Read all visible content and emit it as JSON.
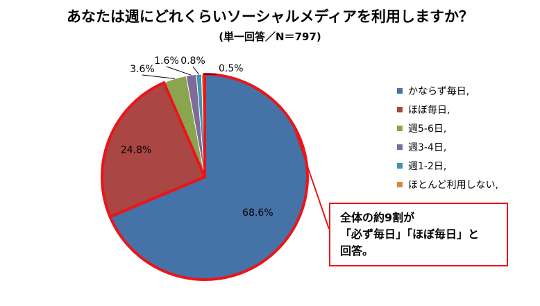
{
  "chart_data": {
    "type": "pie",
    "title": "あなたは週にどれくらいソーシャルメディアを利用しますか？",
    "subtitle": "(単一回答／N＝797)",
    "categories": [
      "かならず毎日,",
      "ほぼ毎日,",
      "週5-6日,",
      "週3-4日,",
      "週1-2日,",
      "ほとんど利用しない,"
    ],
    "values": [
      68.6,
      24.8,
      3.6,
      1.6,
      0.8,
      0.5
    ],
    "labels": [
      "68.6%",
      "24.8%",
      "3.6%",
      "1.6%",
      "0.8%",
      "0.5%"
    ],
    "colors": [
      "#4572a7",
      "#aa4643",
      "#89a54e",
      "#80699b",
      "#3d96ae",
      "#db843d"
    ],
    "legend_position": "right",
    "highlight_color": "#e8161b"
  },
  "callout": {
    "lines": [
      "全体の約9割が",
      "「必ず毎日」「ほぼ毎日」と",
      "回答。"
    ]
  }
}
